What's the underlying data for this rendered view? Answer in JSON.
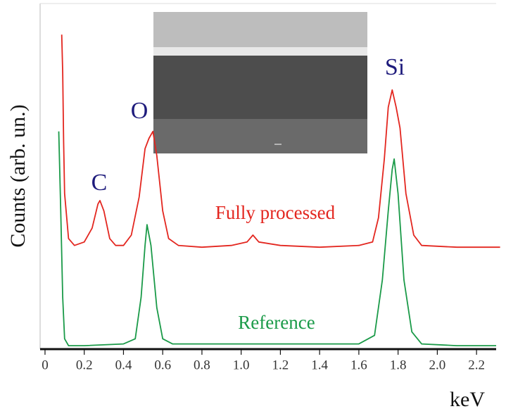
{
  "chart_data": {
    "type": "line",
    "y_label": "Counts (arb. un.)",
    "x_label": "keV",
    "xlim": [
      -0.025,
      2.3
    ],
    "ylim": [
      0,
      100
    ],
    "xticks": [
      0,
      0.2,
      0.4,
      0.6,
      0.8,
      {
        "value": 1,
        "label": "1.0"
      },
      1.2,
      1.4,
      1.6,
      1.8,
      {
        "value": 2,
        "label": "2.0"
      },
      2.2
    ],
    "annotations": [
      "C",
      "O",
      "Si"
    ],
    "series": [
      {
        "name": "Fully processed",
        "color": "#e3261f",
        "x": [
          0.085,
          0.09,
          0.095,
          0.1,
          0.12,
          0.15,
          0.2,
          0.24,
          0.27,
          0.28,
          0.3,
          0.33,
          0.36,
          0.4,
          0.44,
          0.48,
          0.51,
          0.53,
          0.55,
          0.57,
          0.6,
          0.63,
          0.68,
          0.8,
          0.95,
          1.03,
          1.06,
          1.09,
          1.2,
          1.4,
          1.6,
          1.67,
          1.7,
          1.73,
          1.75,
          1.77,
          1.79,
          1.81,
          1.84,
          1.88,
          1.92,
          2.1,
          2.32
        ],
        "values": [
          91,
          80,
          60,
          45,
          32,
          30,
          31,
          35,
          42,
          43,
          40,
          32,
          30,
          30,
          33,
          44,
          58,
          61,
          63,
          56,
          40,
          32,
          30,
          29.5,
          30,
          31,
          33,
          31,
          30,
          29.5,
          30,
          31,
          38,
          55,
          70,
          75,
          70,
          64,
          45,
          33,
          30,
          29.5,
          29.5
        ]
      },
      {
        "name": "Reference",
        "color": "#1a9a48",
        "x": [
          0.07,
          0.08,
          0.09,
          0.1,
          0.12,
          0.2,
          0.4,
          0.46,
          0.49,
          0.51,
          0.52,
          0.54,
          0.57,
          0.6,
          0.65,
          1.0,
          1.4,
          1.6,
          1.68,
          1.72,
          1.75,
          1.77,
          1.78,
          1.8,
          1.83,
          1.87,
          1.92,
          2.1,
          2.3
        ],
        "values": [
          63,
          40,
          15,
          3,
          1,
          1,
          1.5,
          3,
          15,
          30,
          36,
          30,
          12,
          3,
          1.5,
          1.5,
          1.5,
          1.5,
          4,
          20,
          40,
          52,
          55,
          45,
          20,
          5,
          1.5,
          1,
          1
        ]
      }
    ]
  }
}
